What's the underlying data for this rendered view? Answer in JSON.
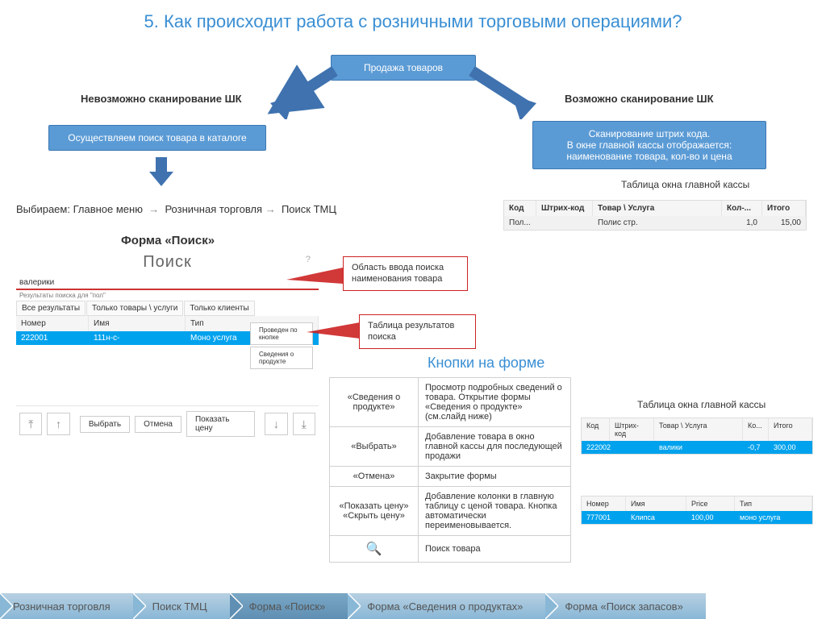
{
  "title": "5. Как происходит работа с розничными торговыми операциями?",
  "top_box": "Продажа товаров",
  "left_branch_label": "Невозможно сканирование ШК",
  "right_branch_label": "Возможно сканирование ШК",
  "left_box": "Осуществляем поиск товара в каталоге",
  "right_box": "Сканирование штрих кода.\nВ окне главной кассы отображается: наименование товара, кол-во и цена",
  "right_table_caption": "Таблица окна главной кассы",
  "main_table": {
    "columns": [
      "Код",
      "Штрих-код",
      "Товар \\ Услуга",
      "Кол-...",
      "Итого"
    ],
    "row": [
      "Пол...",
      "",
      "Полис стр.",
      "1,0",
      "15,00"
    ],
    "widths": [
      40,
      70,
      150,
      45,
      45
    ]
  },
  "path_line": {
    "prefix": "Выбираем: ",
    "items": [
      "Главное меню",
      "Розничная торговля",
      "Поиск ТМЦ"
    ]
  },
  "form_title": "Форма «Поиск»",
  "search_form": {
    "title": "Поиск",
    "search_value": "валерики",
    "results_label": "Результаты поиска для \"пол\"",
    "tabs": [
      "Все результаты",
      "Только товары \\ услуги",
      "Только клиенты"
    ],
    "columns": [
      "Номер",
      "Имя",
      "Тип"
    ],
    "row": [
      "222001",
      "111н-с-",
      "Моно услуга"
    ],
    "side_buttons": [
      "Проведен по кнопке",
      "Сведения о продукте"
    ],
    "bottom_buttons": [
      "Выбрать",
      "Отмена",
      "Показать цену"
    ]
  },
  "callout1": "Область ввода поиска наименования товара",
  "callout2": "Таблица результатов поиска",
  "buttons_section_title": "Кнопки на форме",
  "button_descs": [
    {
      "k": "«Сведения о продукте»",
      "v": "Просмотр подробных сведений о товара. Открытие формы «Сведения о продукте» (см.слайд ниже)"
    },
    {
      "k": "«Выбрать»",
      "v": "Добавление товара в окно главной кассы для последующей продажи"
    },
    {
      "k": "«Отмена»",
      "v": "Закрытие формы"
    },
    {
      "k": "«Показать цену» «Скрыть цену»",
      "v": "Добавление колонки в главную таблицу с ценой товара. Кнопка автоматически переименовывается."
    },
    {
      "k": "icon",
      "v": "Поиск товара"
    }
  ],
  "right_table2_caption": "Таблица окна главной кассы",
  "right_table2": {
    "columns": [
      "Код",
      "Штрих-код",
      "Товар \\ Услуга",
      "Ко...",
      "Итого"
    ],
    "row": [
      "222002",
      "",
      "валики",
      "-0,7",
      "300,00"
    ],
    "widths": [
      35,
      55,
      120,
      30,
      40
    ]
  },
  "right_table3": {
    "columns": [
      "Номер",
      "Имя",
      "Price",
      "Тип"
    ],
    "row": [
      "777001",
      "Клипса",
      "100,00",
      "моно услуга"
    ],
    "widths": [
      55,
      75,
      60,
      90
    ]
  },
  "breadcrumbs": [
    "Розничная торговля",
    "Поиск ТМЦ",
    "Форма «Поиск»",
    "Форма «Сведения о продуктах»",
    "Форма «Поиск запасов»"
  ],
  "breadcrumb_active_index": 2,
  "colors": {
    "blue": "#5b9bd5",
    "blue_border": "#3b77b3",
    "arrow": "#3f72af",
    "accent": "#3a8fd4",
    "bc_from": "#b7d0e2",
    "bc_to": "#89b7d6",
    "bc_active_from": "#7aa7c5",
    "bc_active_to": "#5f8fb3",
    "red": "#c22",
    "hl": "#00a2ed",
    "grey_row": "#f1f1f1"
  }
}
